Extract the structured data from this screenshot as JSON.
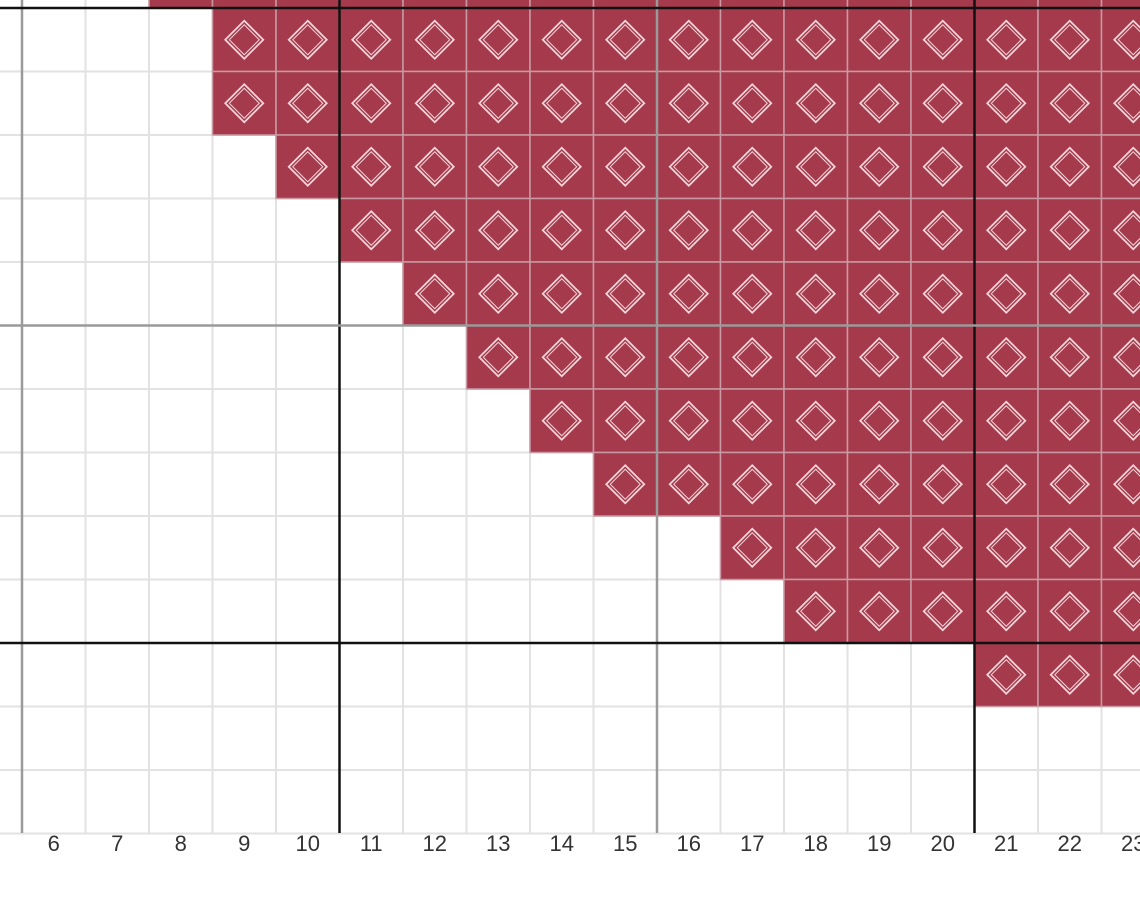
{
  "column_labels": [
    6,
    7,
    8,
    9,
    10,
    11,
    12,
    13,
    14,
    15,
    16,
    17,
    18,
    19,
    20,
    21,
    22,
    23
  ],
  "pattern": {
    "color": "#a43a4b",
    "row_fill_start_columns": [
      8,
      9,
      9,
      10,
      11,
      12,
      13,
      14,
      15,
      17,
      18,
      21,
      null,
      null
    ]
  }
}
